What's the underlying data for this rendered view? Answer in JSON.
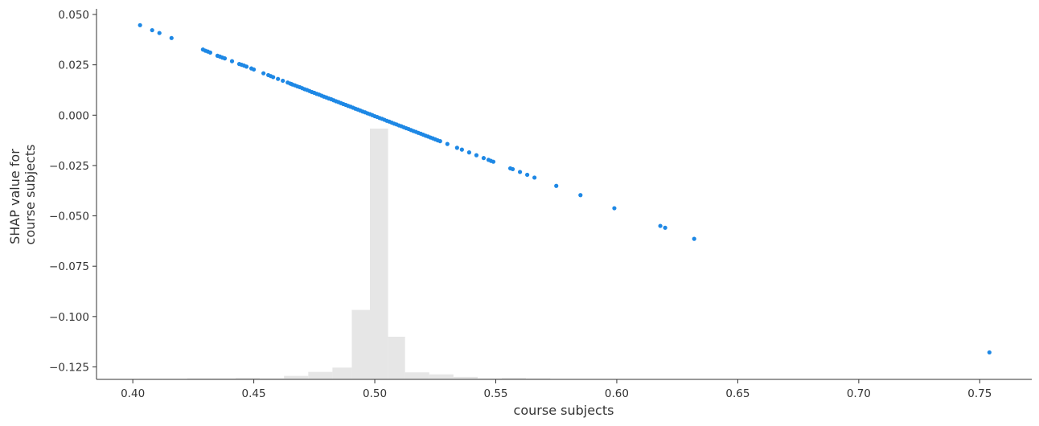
{
  "chart_data": {
    "type": "scatter",
    "xlabel": "course subjects",
    "ylabel_lines": [
      "SHAP value for",
      "course subjects"
    ],
    "xlim": [
      0.385,
      0.7715
    ],
    "ylim": [
      -0.1312,
      0.0528
    ],
    "x_ticks": [
      0.4,
      0.45,
      0.5,
      0.55,
      0.6,
      0.65,
      0.7,
      0.75
    ],
    "x_tick_labels": [
      "0.40",
      "0.45",
      "0.50",
      "0.55",
      "0.60",
      "0.65",
      "0.70",
      "0.75"
    ],
    "y_ticks": [
      0.05,
      0.025,
      0.0,
      -0.025,
      -0.05,
      -0.075,
      -0.1,
      -0.125
    ],
    "y_tick_labels": [
      "0.050",
      "0.025",
      "0.000",
      "−0.025",
      "−0.050",
      "−0.075",
      "−0.100",
      "−0.125"
    ],
    "grid": false,
    "point_color": "#1E88E5",
    "histogram_color": "#E6E6E6",
    "histogram": {
      "edges": [
        0.4025,
        0.4125,
        0.4225,
        0.4325,
        0.4425,
        0.4525,
        0.4625,
        0.4725,
        0.4825,
        0.4905,
        0.498,
        0.5055,
        0.5125,
        0.5225,
        0.5325,
        0.5425,
        0.5525,
        0.5625,
        0.5725
      ],
      "relative_heights": [
        0.001,
        0.0,
        0.004,
        0.004,
        0.006,
        0.004,
        0.014,
        0.03,
        0.047,
        0.277,
        1.0,
        0.17,
        0.028,
        0.02,
        0.01,
        0.004,
        0.006,
        0.004
      ]
    },
    "series": [
      {
        "x": [
          0.403,
          0.408,
          0.411,
          0.416,
          0.429,
          0.43,
          0.431,
          0.432,
          0.435,
          0.436,
          0.437,
          0.438,
          0.441,
          0.444,
          0.445,
          0.446,
          0.447,
          0.449,
          0.45,
          0.454,
          0.456,
          0.457,
          0.458,
          0.46,
          0.462,
          0.464,
          0.465,
          0.4655,
          0.466,
          0.467,
          0.468,
          0.469,
          0.47,
          0.471,
          0.472,
          0.473,
          0.474,
          0.475,
          0.476,
          0.477,
          0.478,
          0.479,
          0.48,
          0.481,
          0.482,
          0.483,
          0.484,
          0.485,
          0.486,
          0.487,
          0.488,
          0.489,
          0.49,
          0.491,
          0.492,
          0.493,
          0.494,
          0.495,
          0.496,
          0.497,
          0.498,
          0.499,
          0.5,
          0.501,
          0.502,
          0.503,
          0.504,
          0.505,
          0.506,
          0.507,
          0.508,
          0.509,
          0.51,
          0.511,
          0.512,
          0.513,
          0.514,
          0.515,
          0.516,
          0.517,
          0.518,
          0.519,
          0.52,
          0.521,
          0.522,
          0.523,
          0.524,
          0.525,
          0.526,
          0.527,
          0.53,
          0.534,
          0.536,
          0.539,
          0.542,
          0.545,
          0.547,
          0.548,
          0.549,
          0.556,
          0.557,
          0.56,
          0.563,
          0.566,
          0.575,
          0.585,
          0.599,
          0.618,
          0.62,
          0.632,
          0.754
        ],
        "y": [
          0.0447,
          0.0422,
          0.0408,
          0.0383,
          0.0326,
          0.032,
          0.0316,
          0.0311,
          0.0295,
          0.0291,
          0.0286,
          0.0282,
          0.0268,
          0.0254,
          0.025,
          0.0246,
          0.0241,
          0.0232,
          0.0227,
          0.0208,
          0.0199,
          0.0194,
          0.0189,
          0.018,
          0.0171,
          0.0162,
          0.0157,
          0.0155,
          0.0152,
          0.0148,
          0.0143,
          0.0139,
          0.0134,
          0.0129,
          0.0125,
          0.012,
          0.0115,
          0.0111,
          0.0106,
          0.0102,
          0.0097,
          0.0092,
          0.0088,
          0.0083,
          0.0079,
          0.0074,
          0.0069,
          0.0065,
          0.006,
          0.0055,
          0.0051,
          0.0046,
          0.0042,
          0.0037,
          0.0032,
          0.0028,
          0.0023,
          0.0018,
          0.0014,
          0.0009,
          0.0005,
          0.0,
          -0.0005,
          -0.0009,
          -0.0014,
          -0.0018,
          -0.0023,
          -0.0028,
          -0.0032,
          -0.0037,
          -0.0042,
          -0.0046,
          -0.0051,
          -0.0055,
          -0.006,
          -0.0065,
          -0.0069,
          -0.0074,
          -0.0079,
          -0.0083,
          -0.0088,
          -0.0092,
          -0.0097,
          -0.0102,
          -0.0106,
          -0.0111,
          -0.0115,
          -0.012,
          -0.0125,
          -0.0129,
          -0.0143,
          -0.0162,
          -0.0171,
          -0.0185,
          -0.0199,
          -0.0213,
          -0.0222,
          -0.0227,
          -0.0231,
          -0.0264,
          -0.0268,
          -0.0282,
          -0.0296,
          -0.031,
          -0.0351,
          -0.0397,
          -0.0462,
          -0.055,
          -0.0559,
          -0.0614,
          -0.1178
        ]
      }
    ]
  }
}
